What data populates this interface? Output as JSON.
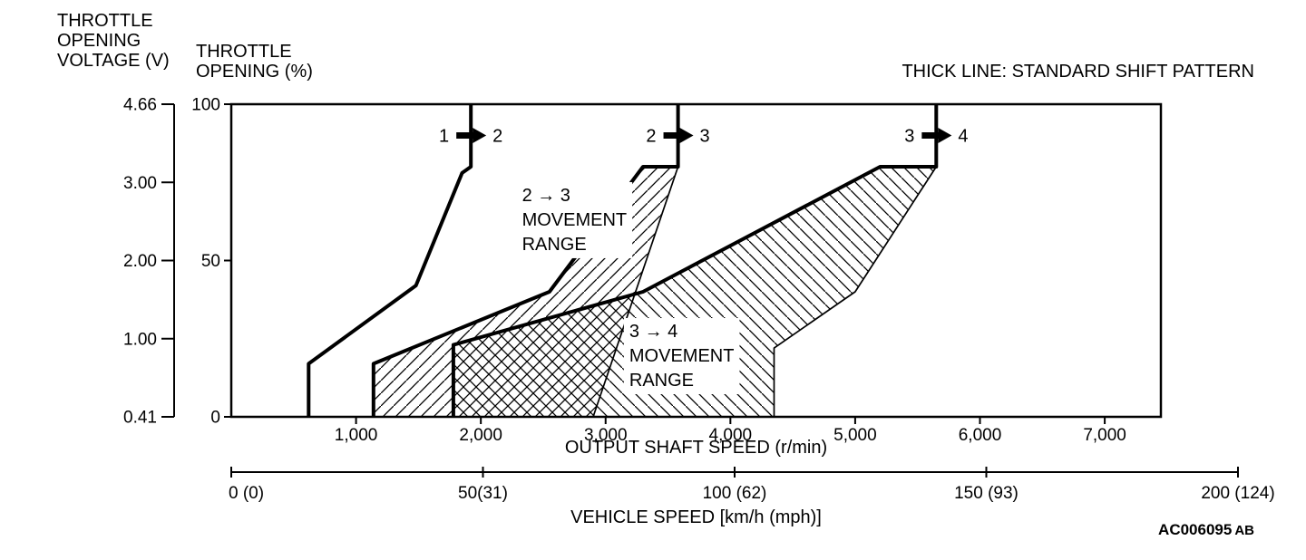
{
  "colors": {
    "ink": "#000000",
    "background": "#ffffff"
  },
  "footer": {
    "figure_code": "AC006095",
    "figure_code_suffix": "AB"
  },
  "chart_data": {
    "type": "line",
    "legend": "THICK LINE: STANDARD SHIFT PATTERN",
    "x_axis": {
      "label": "OUTPUT SHAFT SPEED (r/min)",
      "min": 0,
      "max": 7450,
      "ticks": [
        1000,
        2000,
        3000,
        4000,
        5000,
        6000,
        7000
      ],
      "tick_labels": [
        "1,000",
        "2,000",
        "3,000",
        "4,000",
        "5,000",
        "6,000",
        "7,000"
      ]
    },
    "x_axis_secondary": {
      "label": "VEHICLE SPEED [km/h (mph)]",
      "min": 0,
      "max": 200,
      "ticks": [
        0,
        50,
        100,
        150,
        200
      ],
      "tick_labels": [
        "0 (0)",
        "50(31)",
        "100 (62)",
        "150 (93)",
        "200 (124)"
      ]
    },
    "y_axis": {
      "label": "THROTTLE\nOPENING (%)",
      "min": 0,
      "max": 100,
      "ticks": [
        100,
        50,
        0
      ],
      "tick_labels": [
        "100",
        "50",
        "0"
      ]
    },
    "y_axis_secondary": {
      "label": "THROTTLE\nOPENING\nVOLTAGE (V)",
      "tick_labels": [
        "4.66",
        "3.00",
        "2.00",
        "1.00",
        "0.41"
      ]
    },
    "series": [
      {
        "name": "shift-line-1-2-standard",
        "style": "thick",
        "points": [
          [
            620,
            0
          ],
          [
            620,
            17
          ],
          [
            1480,
            42
          ],
          [
            1850,
            78
          ],
          [
            1920,
            80
          ],
          [
            1920,
            100
          ]
        ]
      },
      {
        "name": "shift-line-2-3-standard",
        "style": "thick",
        "points": [
          [
            1140,
            0
          ],
          [
            1140,
            17
          ],
          [
            2550,
            40
          ],
          [
            3300,
            80
          ],
          [
            3580,
            80
          ],
          [
            3580,
            100
          ]
        ]
      },
      {
        "name": "shift-line-3-4-standard",
        "style": "thick",
        "points": [
          [
            1780,
            0
          ],
          [
            1780,
            23
          ],
          [
            3300,
            40
          ],
          [
            5200,
            80
          ],
          [
            5650,
            80
          ],
          [
            5650,
            100
          ]
        ]
      },
      {
        "name": "shift-line-2-3-range-boundary",
        "style": "thin",
        "points": [
          [
            2900,
            0
          ],
          [
            3580,
            80
          ]
        ]
      },
      {
        "name": "shift-line-3-4-range-boundary",
        "style": "thin",
        "points": [
          [
            4350,
            0
          ],
          [
            4350,
            22
          ],
          [
            5000,
            40
          ],
          [
            5650,
            80
          ]
        ]
      }
    ],
    "regions": [
      {
        "name": "movement-range-2-3",
        "hatch": "fwd",
        "polygon": [
          [
            1140,
            0
          ],
          [
            1140,
            17
          ],
          [
            2550,
            40
          ],
          [
            3300,
            80
          ],
          [
            3580,
            80
          ],
          [
            2900,
            0
          ]
        ]
      },
      {
        "name": "movement-range-3-4",
        "hatch": "back",
        "polygon": [
          [
            1780,
            0
          ],
          [
            1780,
            23
          ],
          [
            3300,
            40
          ],
          [
            5200,
            80
          ],
          [
            5650,
            80
          ],
          [
            5000,
            40
          ],
          [
            4350,
            22
          ],
          [
            4350,
            0
          ]
        ]
      }
    ],
    "annotations": [
      {
        "text": "2 → 3\nMOVEMENT\nRANGE",
        "x": 2330,
        "y": 69
      },
      {
        "text": "3 → 4\nMOVEMENT\nRANGE",
        "x": 3190,
        "y": 25.5
      }
    ],
    "shift_arrows": [
      {
        "from": "1",
        "to": "2",
        "speed": 1920,
        "throttle_pct": 90
      },
      {
        "from": "2",
        "to": "3",
        "speed": 3580,
        "throttle_pct": 90
      },
      {
        "from": "3",
        "to": "4",
        "speed": 5650,
        "throttle_pct": 90
      }
    ]
  }
}
